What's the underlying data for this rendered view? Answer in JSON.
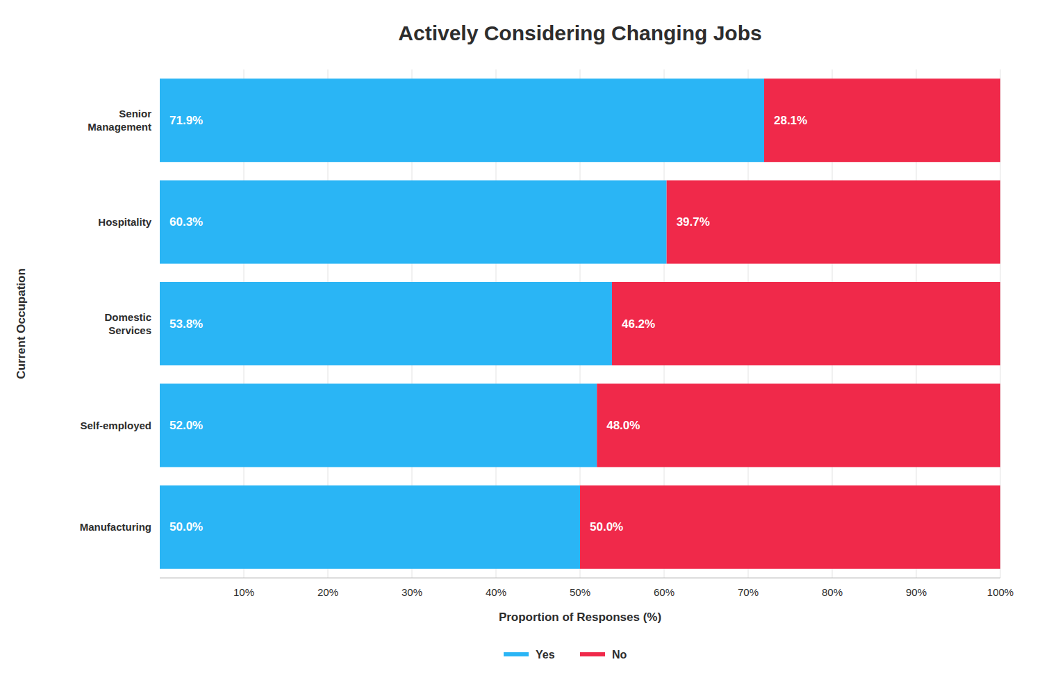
{
  "chart_data": {
    "type": "bar",
    "orientation": "horizontal",
    "stacked": true,
    "title": "Actively Considering Changing Jobs",
    "xlabel": "Proportion of Responses (%)",
    "ylabel": "Current Occupation",
    "categories": [
      "Senior\nManagement",
      "Hospitality",
      "Domestic\nServices",
      "Self-employed",
      "Manufacturing"
    ],
    "series": [
      {
        "name": "Yes",
        "color": "#2ab5f5",
        "values": [
          71.9,
          60.3,
          53.8,
          52.0,
          50.0
        ],
        "value_labels": [
          "71.9%",
          "60.3%",
          "53.8%",
          "52.0%",
          "50.0%"
        ]
      },
      {
        "name": "No",
        "color": "#F0294A",
        "values": [
          28.1,
          39.7,
          46.2,
          48.0,
          50.0
        ],
        "value_labels": [
          "28.1%",
          "39.7%",
          "46.2%",
          "48.0%",
          "50.0%"
        ]
      }
    ],
    "xlim": [
      0,
      100
    ],
    "xticks": [
      {
        "value": 10,
        "label": "10%"
      },
      {
        "value": 20,
        "label": "20%"
      },
      {
        "value": 30,
        "label": "30%"
      },
      {
        "value": 40,
        "label": "40%"
      },
      {
        "value": 50,
        "label": "50%"
      },
      {
        "value": 60,
        "label": "60%"
      },
      {
        "value": 70,
        "label": "70%"
      },
      {
        "value": 80,
        "label": "80%"
      },
      {
        "value": 90,
        "label": "90%"
      },
      {
        "value": 100,
        "label": "100%"
      }
    ],
    "grid": true,
    "legend": "bottom",
    "data_labels": true
  }
}
